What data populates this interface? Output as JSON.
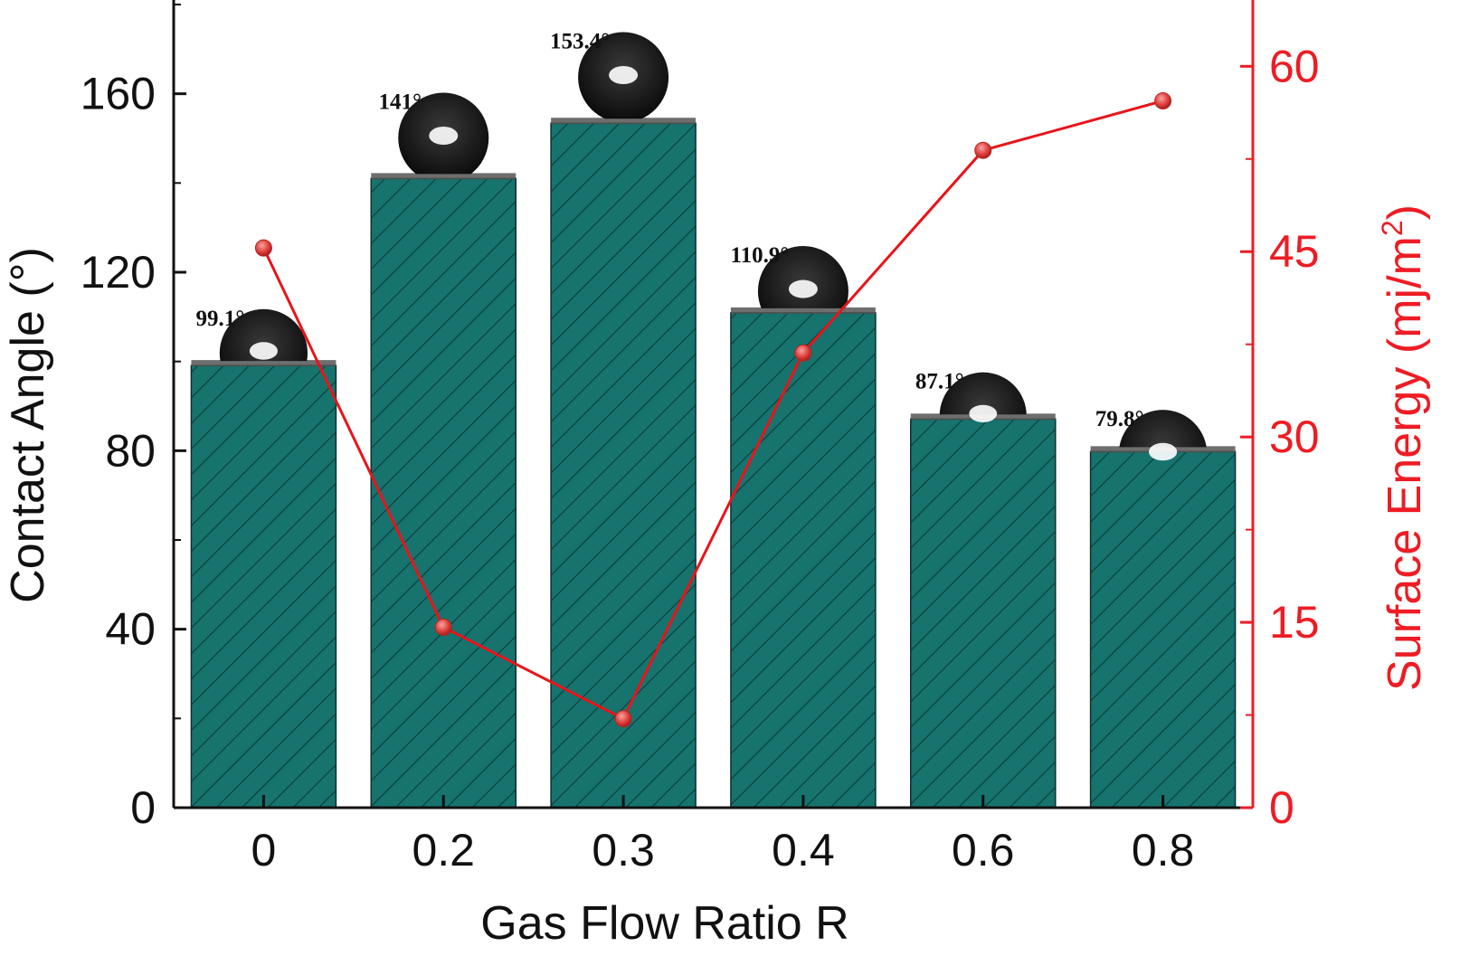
{
  "chart_data": {
    "type": "bar",
    "categories": [
      "0",
      "0.2",
      "0.3",
      "0.4",
      "0.6",
      "0.8"
    ],
    "series": [
      {
        "name": "",
        "type": "bar",
        "axis": "left",
        "values": [
          99.1,
          141,
          153.4,
          110.9,
          87.1,
          79.8
        ]
      },
      {
        "name": "",
        "type": "line",
        "axis": "right",
        "values": [
          45.3,
          14.6,
          7.2,
          36.8,
          53.2,
          57.2
        ]
      }
    ],
    "data_labels": [
      "99.1°",
      "141°",
      "153.4°",
      "110.9°",
      "87.1°",
      "79.8°"
    ],
    "xlabel": "Gas Flow Ratio R",
    "ylabel": "Contact Angle (°)",
    "y2label_main": "Surface Energy (mj/m",
    "y2label_sup": "2",
    "y2label_end": ")",
    "ylim": [
      0,
      180
    ],
    "yticks": [
      0,
      40,
      80,
      120,
      160
    ],
    "y2lim": [
      0,
      65
    ],
    "y2ticks": [
      0,
      15,
      30,
      45,
      60
    ],
    "grid": false,
    "colors": {
      "bar": "#16736e",
      "hatch": "#0c3d3a",
      "line": "#e8141a",
      "marker": "#e0423f",
      "right_axis": "#ee1c24"
    }
  }
}
